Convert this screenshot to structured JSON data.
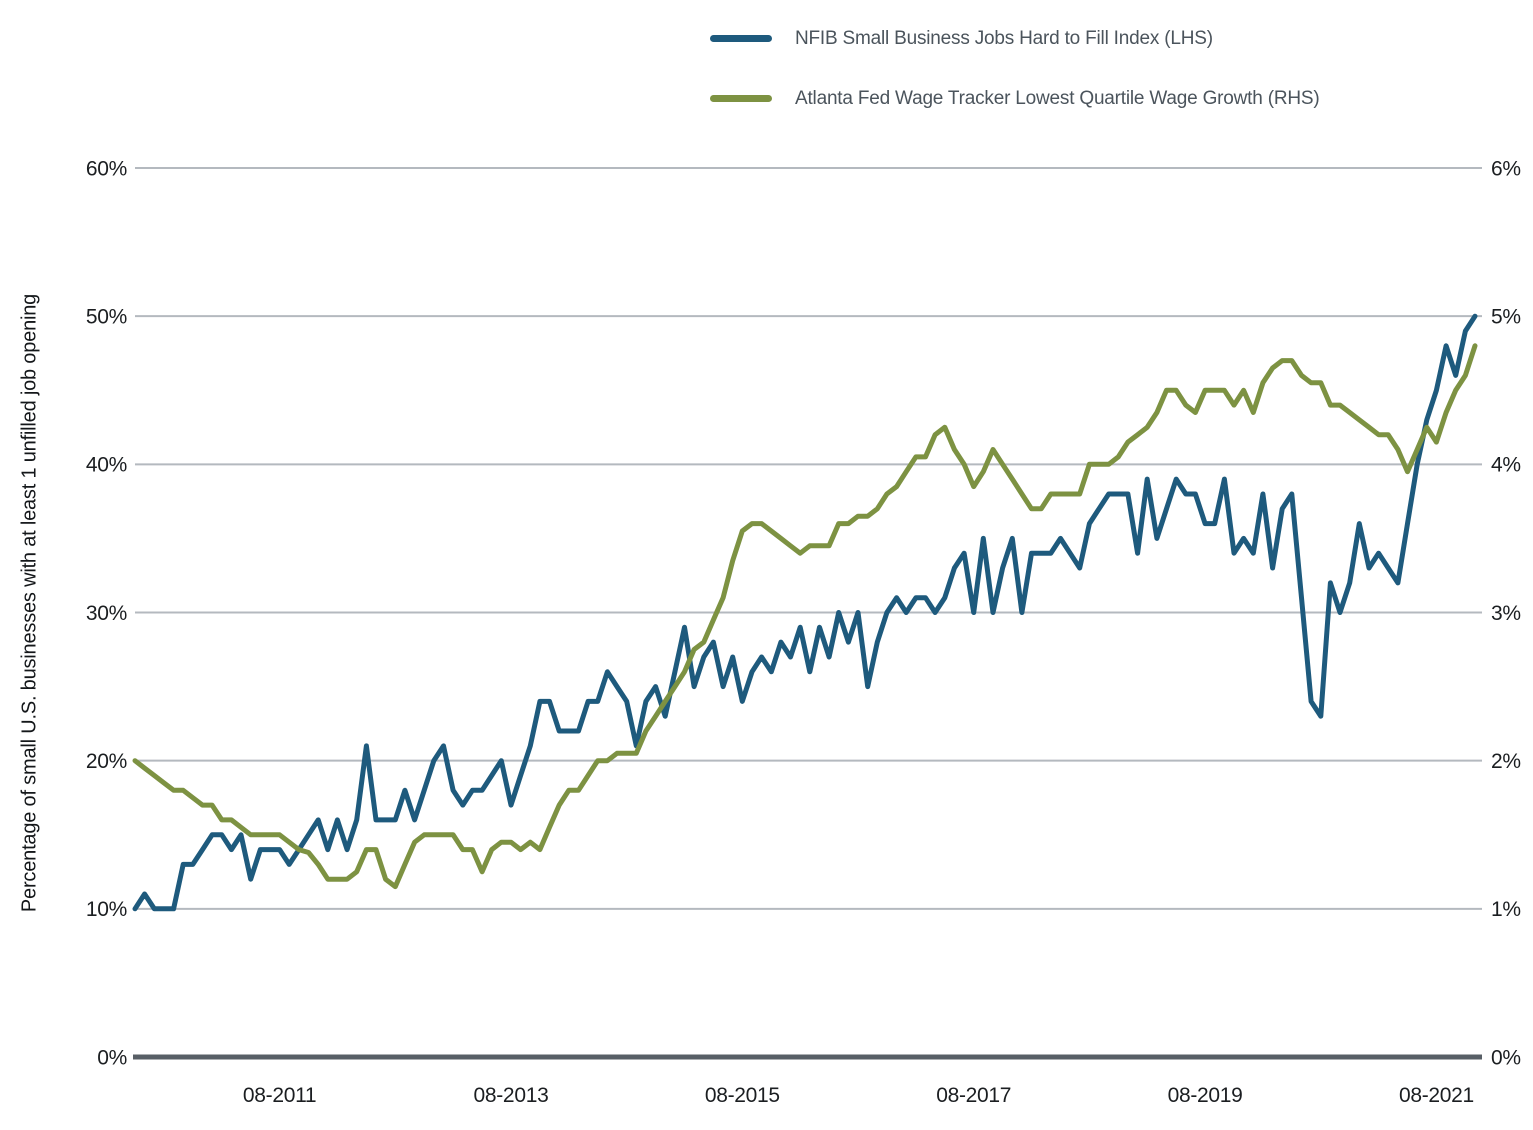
{
  "legend": {
    "items": [
      {
        "label": "NFIB Small Business Jobs Hard to Fill Index (LHS)",
        "color": "#1e5a7d"
      },
      {
        "label": "Atlanta Fed Wage Tracker Lowest Quartile Wage Growth (RHS)",
        "color": "#7d9242"
      }
    ]
  },
  "chart_data": {
    "type": "line",
    "title": "",
    "grid_color": "#b4b9bf",
    "axis_line_color": "#585f66",
    "left_axis": {
      "label": "Percentage of small U.S. businesses with at least 1 unfilled job opening",
      "ticks": [
        "0%",
        "10%",
        "20%",
        "30%",
        "40%",
        "50%",
        "60%"
      ],
      "tick_values": [
        0,
        10,
        20,
        30,
        40,
        50,
        60
      ],
      "min": 0,
      "max": 60
    },
    "right_axis": {
      "ticks": [
        "0%",
        "1%",
        "2%",
        "3%",
        "4%",
        "5%",
        "6%"
      ],
      "tick_values": [
        0,
        1,
        2,
        3,
        4,
        5,
        6
      ],
      "min": 0,
      "max": 6
    },
    "x_axis": {
      "tick_labels": [
        "08-2011",
        "08-2013",
        "08-2015",
        "08-2017",
        "08-2019",
        "08-2021"
      ],
      "tick_indices": [
        15,
        39,
        63,
        87,
        111,
        135
      ],
      "start_month": "2010-05",
      "end_month": "2021-12",
      "frequency": "monthly"
    },
    "series": [
      {
        "name": "NFIB Small Business Jobs Hard to Fill Index (LHS)",
        "axis": "left",
        "color": "#1e5a7d",
        "unit": "%",
        "values": [
          10,
          11,
          10,
          10,
          10,
          13,
          13,
          14,
          15,
          15,
          14,
          15,
          12,
          14,
          14,
          14,
          13,
          14,
          15,
          16,
          14,
          16,
          14,
          16,
          21,
          16,
          16,
          16,
          18,
          16,
          18,
          20,
          21,
          18,
          17,
          18,
          18,
          19,
          20,
          17,
          19,
          21,
          24,
          24,
          22,
          22,
          22,
          24,
          24,
          26,
          25,
          24,
          21,
          24,
          25,
          23,
          26,
          29,
          25,
          27,
          28,
          25,
          27,
          24,
          26,
          27,
          26,
          28,
          27,
          29,
          26,
          29,
          27,
          30,
          28,
          30,
          25,
          28,
          30,
          31,
          30,
          31,
          31,
          30,
          31,
          33,
          34,
          30,
          35,
          30,
          33,
          35,
          30,
          34,
          34,
          34,
          35,
          34,
          33,
          36,
          37,
          38,
          38,
          38,
          34,
          39,
          35,
          37,
          39,
          38,
          38,
          36,
          36,
          39,
          34,
          35,
          34,
          38,
          33,
          37,
          38,
          31,
          24,
          23,
          32,
          30,
          32,
          36,
          33,
          34,
          33,
          32,
          36,
          40,
          43,
          45,
          48,
          46,
          49,
          50
        ]
      },
      {
        "name": "Atlanta Fed Wage Tracker Lowest Quartile Wage Growth (RHS)",
        "axis": "right",
        "color": "#7d9242",
        "unit": "%",
        "values": [
          2.0,
          1.95,
          1.9,
          1.85,
          1.8,
          1.8,
          1.75,
          1.7,
          1.7,
          1.6,
          1.6,
          1.55,
          1.5,
          1.5,
          1.5,
          1.5,
          1.45,
          1.4,
          1.38,
          1.3,
          1.2,
          1.2,
          1.2,
          1.25,
          1.4,
          1.4,
          1.2,
          1.15,
          1.3,
          1.45,
          1.5,
          1.5,
          1.5,
          1.5,
          1.4,
          1.4,
          1.25,
          1.4,
          1.45,
          1.45,
          1.4,
          1.45,
          1.4,
          1.55,
          1.7,
          1.8,
          1.8,
          1.9,
          2.0,
          2.0,
          2.05,
          2.05,
          2.05,
          2.2,
          2.3,
          2.4,
          2.5,
          2.6,
          2.75,
          2.8,
          2.95,
          3.1,
          3.35,
          3.55,
          3.6,
          3.6,
          3.55,
          3.5,
          3.45,
          3.4,
          3.45,
          3.45,
          3.45,
          3.6,
          3.6,
          3.65,
          3.65,
          3.7,
          3.8,
          3.85,
          3.95,
          4.05,
          4.05,
          4.2,
          4.25,
          4.1,
          4.0,
          3.85,
          3.95,
          4.1,
          4.0,
          3.9,
          3.8,
          3.7,
          3.7,
          3.8,
          3.8,
          3.8,
          3.8,
          4.0,
          4.0,
          4.0,
          4.05,
          4.15,
          4.2,
          4.25,
          4.35,
          4.5,
          4.5,
          4.4,
          4.35,
          4.5,
          4.5,
          4.5,
          4.4,
          4.5,
          4.35,
          4.55,
          4.65,
          4.7,
          4.7,
          4.6,
          4.55,
          4.55,
          4.4,
          4.4,
          4.35,
          4.3,
          4.25,
          4.2,
          4.2,
          4.1,
          3.95,
          4.1,
          4.25,
          4.15,
          4.35,
          4.5,
          4.6,
          4.8
        ]
      }
    ]
  }
}
